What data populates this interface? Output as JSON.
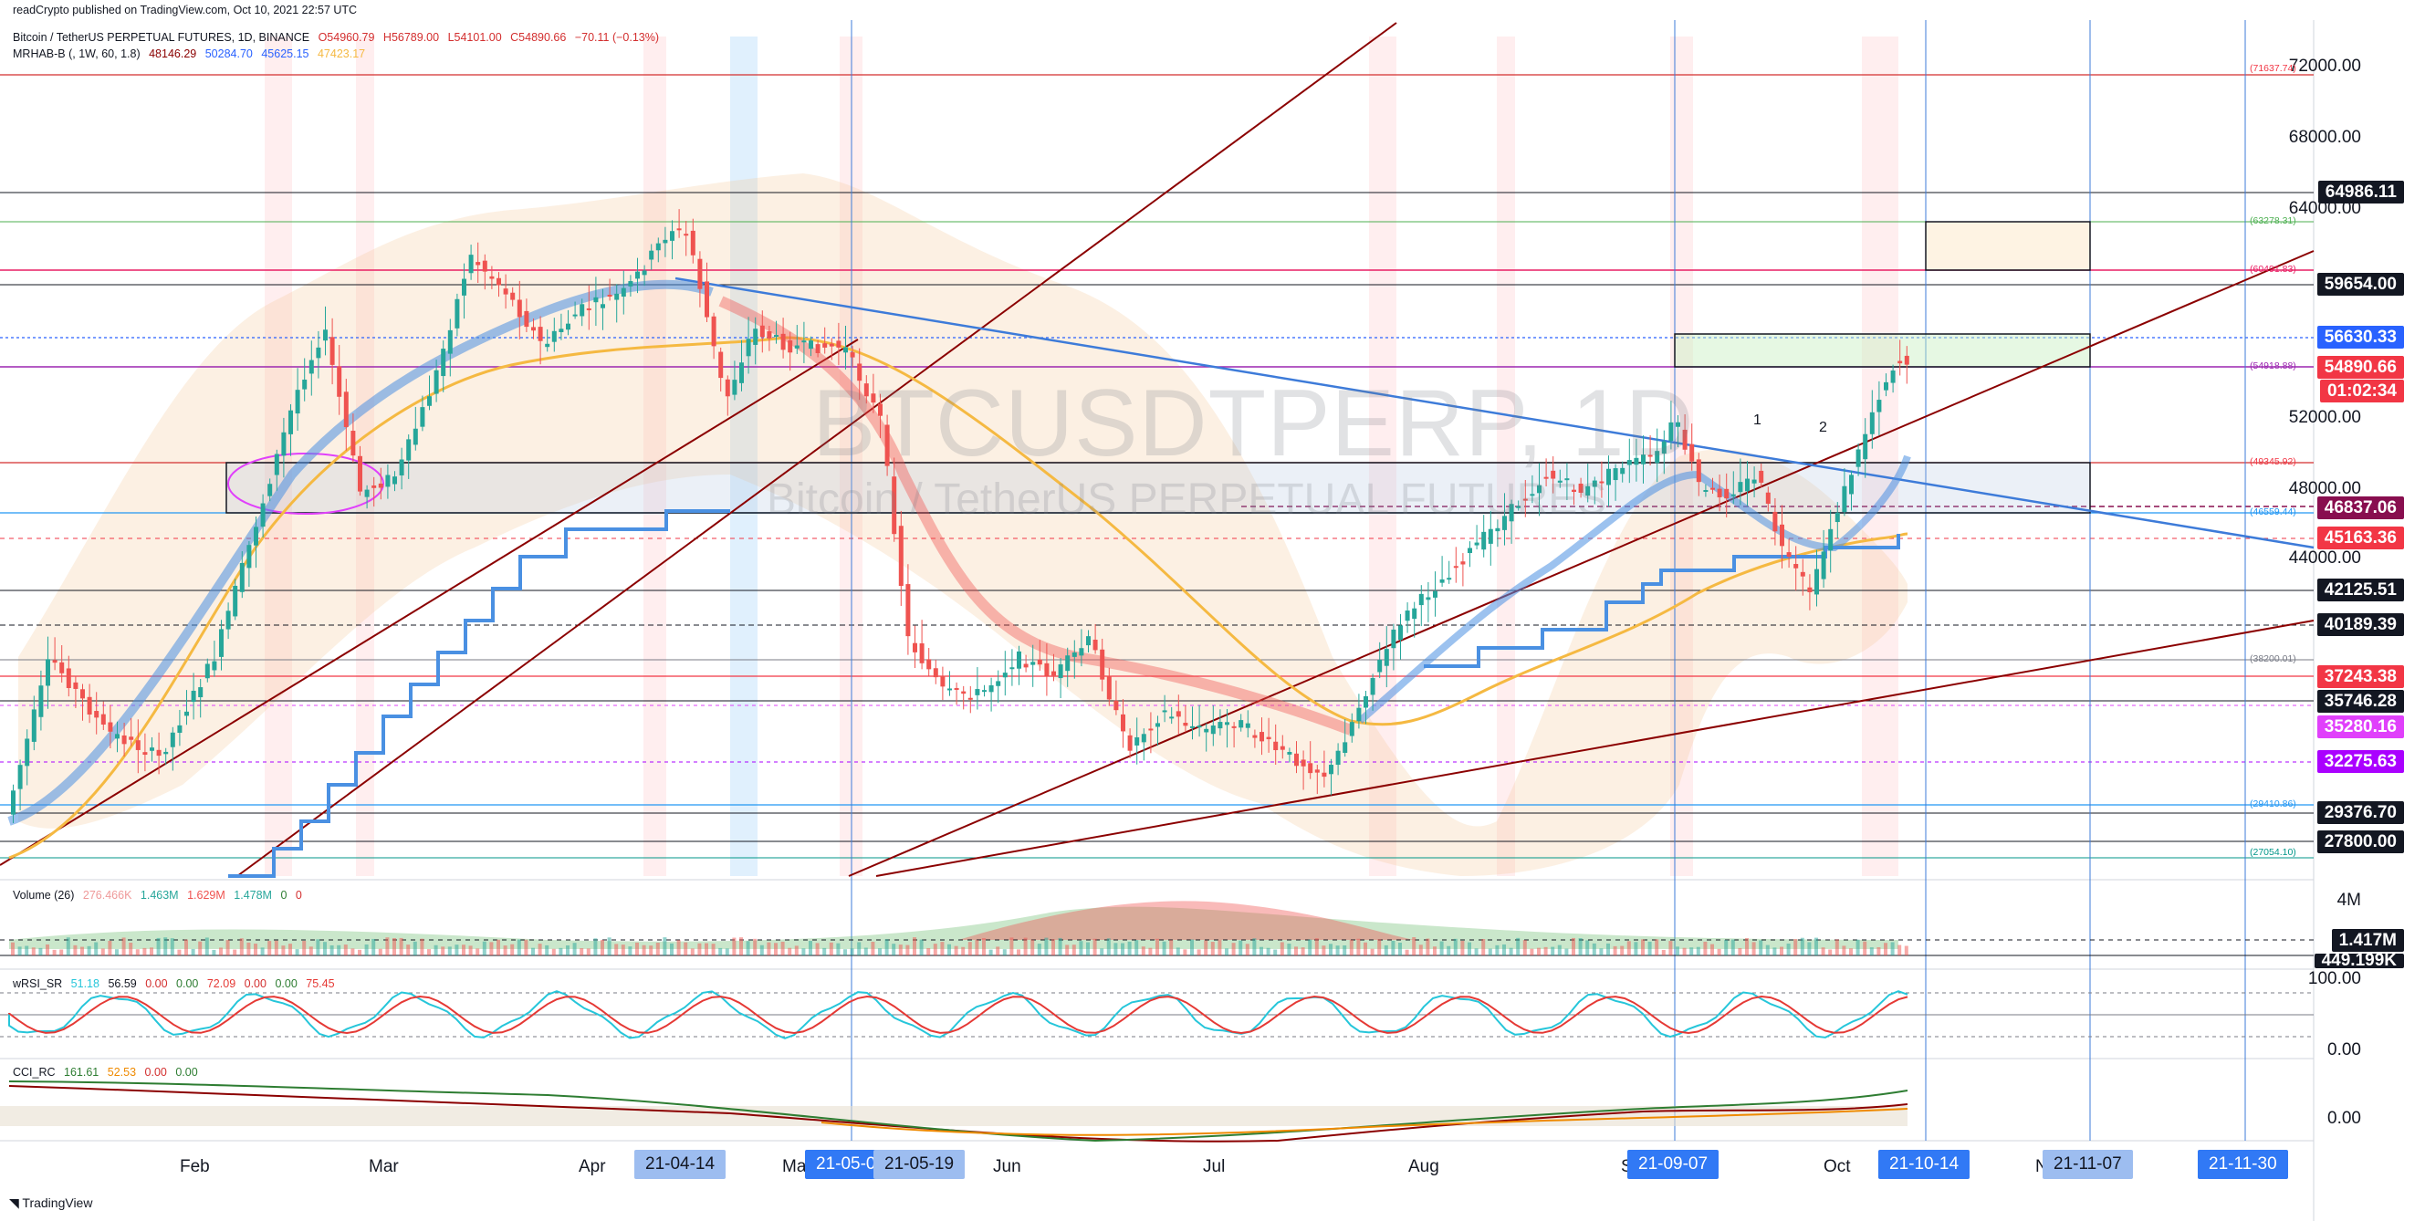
{
  "header": {
    "published": "readCrypto published on TradingView.com, Oct 10, 2021 22:57 UTC",
    "symbol_line": "Bitcoin / TetherUS PERPETUAL FUTURES, 1D, BINANCE",
    "ohlc": {
      "o": "O54960.79",
      "h": "H56789.00",
      "l": "L54101.00",
      "c": "C54890.66",
      "chg": "−70.11 (−0.13%)"
    },
    "indicator1": {
      "name": "MRHAB-B (, 1W, 60, 1.8)",
      "v1": "48146.29",
      "v2": "50284.70",
      "v3": "45625.15",
      "v4": "47423.17"
    },
    "volume": {
      "name": "Volume (26)",
      "v1": "276.466K",
      "v2": "1.463M",
      "v3": "1.629M",
      "v4": "1.478M",
      "v5": "0",
      "v6": "0"
    },
    "wrsi": {
      "name": "wRSI_SR",
      "v1": "51.18",
      "v2": "56.59",
      "v3": "0.00",
      "v4": "0.00",
      "v5": "72.09",
      "v6": "0.00",
      "v7": "0.00",
      "v8": "75.45"
    },
    "cci": {
      "name": "CCI_RC",
      "v1": "161.61",
      "v2": "52.53",
      "v3": "0.00",
      "v4": "0.00"
    }
  },
  "watermark": {
    "symbol": "BTCUSDTPERP, 1D",
    "name": "Bitcoin / TetherUS PERPETUAL FUTURES"
  },
  "price_axis": [
    "72000.00",
    "68000.00",
    "64000.00",
    "52000.00",
    "48000.00",
    "44000.00"
  ],
  "price_tags": [
    {
      "text": "64986.11",
      "bg": "#131722",
      "fg": "#ffffff"
    },
    {
      "text": "59654.00",
      "bg": "#131722",
      "fg": "#ffffff"
    },
    {
      "text": "56630.33",
      "bg": "#2962ff",
      "fg": "#ffffff"
    },
    {
      "text": "54890.66",
      "bg": "#f23645",
      "fg": "#ffffff"
    },
    {
      "text": "01:02:34",
      "bg": "#f23645",
      "fg": "#ffffff"
    },
    {
      "text": "46837.06",
      "bg": "#880e4f",
      "fg": "#ffffff"
    },
    {
      "text": "45163.36",
      "bg": "#f23645",
      "fg": "#ffffff"
    },
    {
      "text": "42125.51",
      "bg": "#131722",
      "fg": "#ffffff"
    },
    {
      "text": "40189.39",
      "bg": "#131722",
      "fg": "#ffffff"
    },
    {
      "text": "37243.38",
      "bg": "#f23645",
      "fg": "#ffffff"
    },
    {
      "text": "35746.28",
      "bg": "#131722",
      "fg": "#ffffff"
    },
    {
      "text": "35280.16",
      "bg": "#e040fb",
      "fg": "#ffffff"
    },
    {
      "text": "32275.63",
      "bg": "#aa00ff",
      "fg": "#ffffff"
    },
    {
      "text": "29376.70",
      "bg": "#131722",
      "fg": "#ffffff"
    },
    {
      "text": "27800.00",
      "bg": "#131722",
      "fg": "#ffffff"
    }
  ],
  "small_labels": [
    {
      "text": "(71637.74)",
      "color": "#f23645"
    },
    {
      "text": "(63278.31)",
      "color": "#4caf50"
    },
    {
      "text": "(60491.83)",
      "color": "#e91e63"
    },
    {
      "text": "(54918.88)",
      "color": "#9c27b0"
    },
    {
      "text": "(49345.92)",
      "color": "#f23645"
    },
    {
      "text": "(46559.44)",
      "color": "#2196f3"
    },
    {
      "text": "(38200.01)",
      "color": "#787b86"
    },
    {
      "text": "(29410.86)",
      "color": "#2196f3"
    },
    {
      "text": "(27054.10)",
      "color": "#009688"
    }
  ],
  "volume_axis": {
    "top": "4M",
    "current": "1.417M",
    "low": "449.199K"
  },
  "wrsi_axis": {
    "top": "100.00",
    "bottom": "0.00"
  },
  "cci_axis": {
    "zero": "0.00"
  },
  "time_axis": {
    "months": [
      "Feb",
      "Mar",
      "Apr",
      "Ma",
      "Jun",
      "Jul",
      "Aug",
      "S",
      "Oct",
      "N"
    ],
    "date_tags": [
      {
        "text": "21-04-14",
        "style": "light"
      },
      {
        "text": "21-05-0",
        "style": "dark"
      },
      {
        "text": "21-05-19",
        "style": "light"
      },
      {
        "text": "21-09-07",
        "style": "dark"
      },
      {
        "text": "21-10-14",
        "style": "dark"
      },
      {
        "text": "21-11-07",
        "style": "light"
      },
      {
        "text": "21-11-30",
        "style": "dark"
      }
    ]
  },
  "wave_labels": [
    "1",
    "2"
  ],
  "brand": "TradingView",
  "colors": {
    "up": "#26a69a",
    "down": "#ef5350",
    "ma_blue": "#4a90e2",
    "ma_yellow": "#f5b942",
    "trend_red": "#8b0000",
    "trend_blue": "#3d7bd9"
  }
}
